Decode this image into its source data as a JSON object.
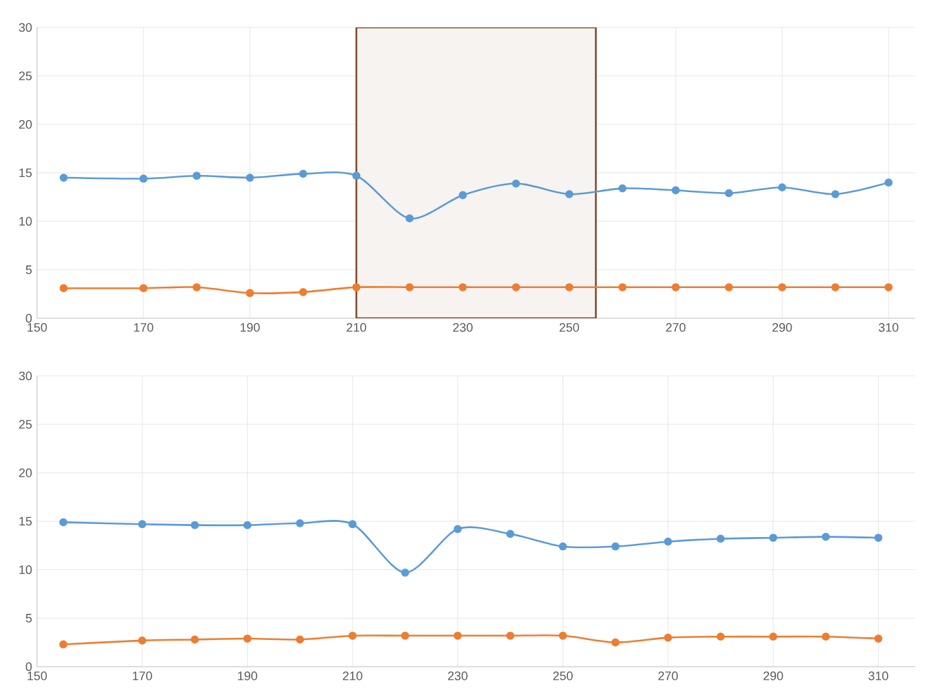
{
  "chart_data": [
    {
      "type": "line",
      "x": [
        155,
        170,
        180,
        190,
        200,
        210,
        220,
        230,
        240,
        250,
        260,
        270,
        280,
        290,
        300,
        310
      ],
      "series": [
        {
          "color": "#5b9bd5",
          "values": [
            14.5,
            14.4,
            14.7,
            14.5,
            14.9,
            14.7,
            10.3,
            12.7,
            13.9,
            12.8,
            13.4,
            13.2,
            12.9,
            13.5,
            12.8,
            14.0
          ]
        },
        {
          "color": "#ed7d31",
          "values": [
            3.1,
            3.1,
            3.2,
            2.6,
            2.7,
            3.2,
            3.2,
            3.2,
            3.2,
            3.2,
            3.2,
            3.2,
            3.2,
            3.2,
            3.2,
            3.2
          ]
        }
      ],
      "xlim": [
        150,
        315
      ],
      "xticks": [
        150,
        170,
        190,
        210,
        230,
        250,
        270,
        290,
        310
      ],
      "ylim": [
        0,
        30
      ],
      "yticks": [
        0,
        5,
        10,
        15,
        20,
        25,
        30
      ],
      "grid": true,
      "marker": "circle",
      "bands": [
        {
          "axis": "x",
          "from": 210,
          "to": 255,
          "color": "#7b3f1a"
        }
      ]
    },
    {
      "type": "line",
      "x": [
        155,
        170,
        180,
        190,
        200,
        210,
        220,
        230,
        240,
        250,
        260,
        270,
        280,
        290,
        300,
        310
      ],
      "series": [
        {
          "color": "#5b9bd5",
          "values": [
            14.9,
            14.7,
            14.6,
            14.6,
            14.8,
            14.7,
            9.7,
            14.2,
            13.7,
            12.4,
            12.4,
            12.9,
            13.2,
            13.3,
            13.4,
            13.3
          ]
        },
        {
          "color": "#ed7d31",
          "values": [
            2.3,
            2.7,
            2.8,
            2.9,
            2.8,
            3.2,
            3.2,
            3.2,
            3.2,
            3.2,
            2.5,
            3.0,
            3.1,
            3.1,
            3.1,
            2.9
          ]
        }
      ],
      "xlim": [
        150,
        317
      ],
      "xticks": [
        150,
        170,
        190,
        210,
        230,
        250,
        270,
        290,
        310
      ],
      "ylim": [
        0,
        30
      ],
      "yticks": [
        0,
        5,
        10,
        15,
        20,
        25,
        30
      ],
      "grid": true,
      "marker": "circle"
    }
  ]
}
